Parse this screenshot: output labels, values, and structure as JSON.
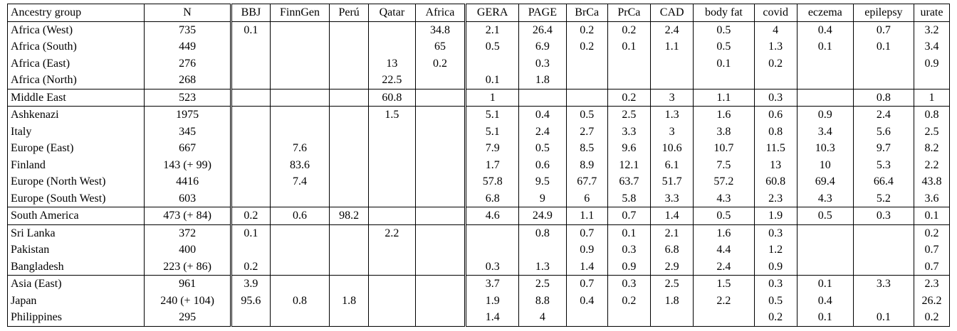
{
  "table": {
    "columns": [
      "Ancestry group",
      "N",
      "BBJ",
      "FinnGen",
      "Perú",
      "Qatar",
      "Africa",
      "GERA",
      "PAGE",
      "BrCa",
      "PrCa",
      "CAD",
      "body fat",
      "covid",
      "eczema",
      "epilepsy",
      "urate"
    ],
    "groups": [
      {
        "rows": [
          {
            "cells": [
              "Africa (West)",
              "735",
              "0.1",
              "",
              "",
              "",
              "34.8",
              "2.1",
              "26.4",
              "0.2",
              "0.2",
              "2.4",
              "0.5",
              "4",
              "0.4",
              "0.7",
              "3.2"
            ]
          },
          {
            "cells": [
              "Africa (South)",
              "449",
              "",
              "",
              "",
              "",
              "65",
              "0.5",
              "6.9",
              "0.2",
              "0.1",
              "1.1",
              "0.5",
              "1.3",
              "0.1",
              "0.1",
              "3.4"
            ]
          },
          {
            "cells": [
              "Africa (East)",
              "276",
              "",
              "",
              "",
              "13",
              "0.2",
              "",
              "0.3",
              "",
              "",
              "",
              "0.1",
              "0.2",
              "",
              "",
              "0.9"
            ]
          },
          {
            "cells": [
              "Africa (North)",
              "268",
              "",
              "",
              "",
              "22.5",
              "",
              "0.1",
              "1.8",
              "",
              "",
              "",
              "",
              "",
              "",
              "",
              ""
            ]
          }
        ]
      },
      {
        "rows": [
          {
            "cells": [
              "Middle East",
              "523",
              "",
              "",
              "",
              "60.8",
              "",
              "1",
              "",
              "",
              "0.2",
              "3",
              "1.1",
              "0.3",
              "",
              "0.8",
              "1"
            ]
          }
        ]
      },
      {
        "rows": [
          {
            "cells": [
              "Ashkenazi",
              "1975",
              "",
              "",
              "",
              "1.5",
              "",
              "5.1",
              "0.4",
              "0.5",
              "2.5",
              "1.3",
              "1.6",
              "0.6",
              "0.9",
              "2.4",
              "0.8"
            ]
          },
          {
            "cells": [
              "Italy",
              "345",
              "",
              "",
              "",
              "",
              "",
              "5.1",
              "2.4",
              "2.7",
              "3.3",
              "3",
              "3.8",
              "0.8",
              "3.4",
              "5.6",
              "2.5"
            ]
          },
          {
            "cells": [
              "Europe (East)",
              "667",
              "",
              "7.6",
              "",
              "",
              "",
              "7.9",
              "0.5",
              "8.5",
              "9.6",
              "10.6",
              "10.7",
              "11.5",
              "10.3",
              "9.7",
              "8.2"
            ]
          },
          {
            "cells": [
              "Finland",
              "143 (+ 99)",
              "",
              "83.6",
              "",
              "",
              "",
              "1.7",
              "0.6",
              "8.9",
              "12.1",
              "6.1",
              "7.5",
              "13",
              "10",
              "5.3",
              "2.2"
            ]
          },
          {
            "cells": [
              "Europe (North West)",
              "4416",
              "",
              "7.4",
              "",
              "",
              "",
              "57.8",
              "9.5",
              "67.7",
              "63.7",
              "51.7",
              "57.2",
              "60.8",
              "69.4",
              "66.4",
              "43.8"
            ]
          },
          {
            "cells": [
              "Europe (South West)",
              "603",
              "",
              "",
              "",
              "",
              "",
              "6.8",
              "9",
              "6",
              "5.8",
              "3.3",
              "4.3",
              "2.3",
              "4.3",
              "5.2",
              "3.6"
            ]
          }
        ]
      },
      {
        "rows": [
          {
            "cells": [
              "South America",
              "473 (+ 84)",
              "0.2",
              "0.6",
              "98.2",
              "",
              "",
              "4.6",
              "24.9",
              "1.1",
              "0.7",
              "1.4",
              "0.5",
              "1.9",
              "0.5",
              "0.3",
              "0.1"
            ]
          }
        ]
      },
      {
        "rows": [
          {
            "cells": [
              "Sri Lanka",
              "372",
              "0.1",
              "",
              "",
              "2.2",
              "",
              "",
              "0.8",
              "0.7",
              "0.1",
              "2.1",
              "1.6",
              "0.3",
              "",
              "",
              "0.2"
            ]
          },
          {
            "cells": [
              "Pakistan",
              "400",
              "",
              "",
              "",
              "",
              "",
              "",
              "",
              "0.9",
              "0.3",
              "6.8",
              "4.4",
              "1.2",
              "",
              "",
              "0.7"
            ]
          },
          {
            "cells": [
              "Bangladesh",
              "223 (+ 86)",
              "0.2",
              "",
              "",
              "",
              "",
              "0.3",
              "1.3",
              "1.4",
              "0.9",
              "2.9",
              "2.4",
              "0.9",
              "",
              "",
              "0.7"
            ]
          }
        ]
      },
      {
        "rows": [
          {
            "cells": [
              "Asia (East)",
              "961",
              "3.9",
              "",
              "",
              "",
              "",
              "3.7",
              "2.5",
              "0.7",
              "0.3",
              "2.5",
              "1.5",
              "0.3",
              "0.1",
              "3.3",
              "2.3"
            ]
          },
          {
            "cells": [
              "Japan",
              "240 (+ 104)",
              "95.6",
              "0.8",
              "1.8",
              "",
              "",
              "1.9",
              "8.8",
              "0.4",
              "0.2",
              "1.8",
              "2.2",
              "0.5",
              "0.4",
              "",
              "26.2"
            ]
          },
          {
            "cells": [
              "Philippines",
              "295",
              "",
              "",
              "",
              "",
              "",
              "1.4",
              "4",
              "",
              "",
              "",
              "",
              "0.2",
              "0.1",
              "0.1",
              "0.2"
            ]
          }
        ]
      }
    ]
  }
}
